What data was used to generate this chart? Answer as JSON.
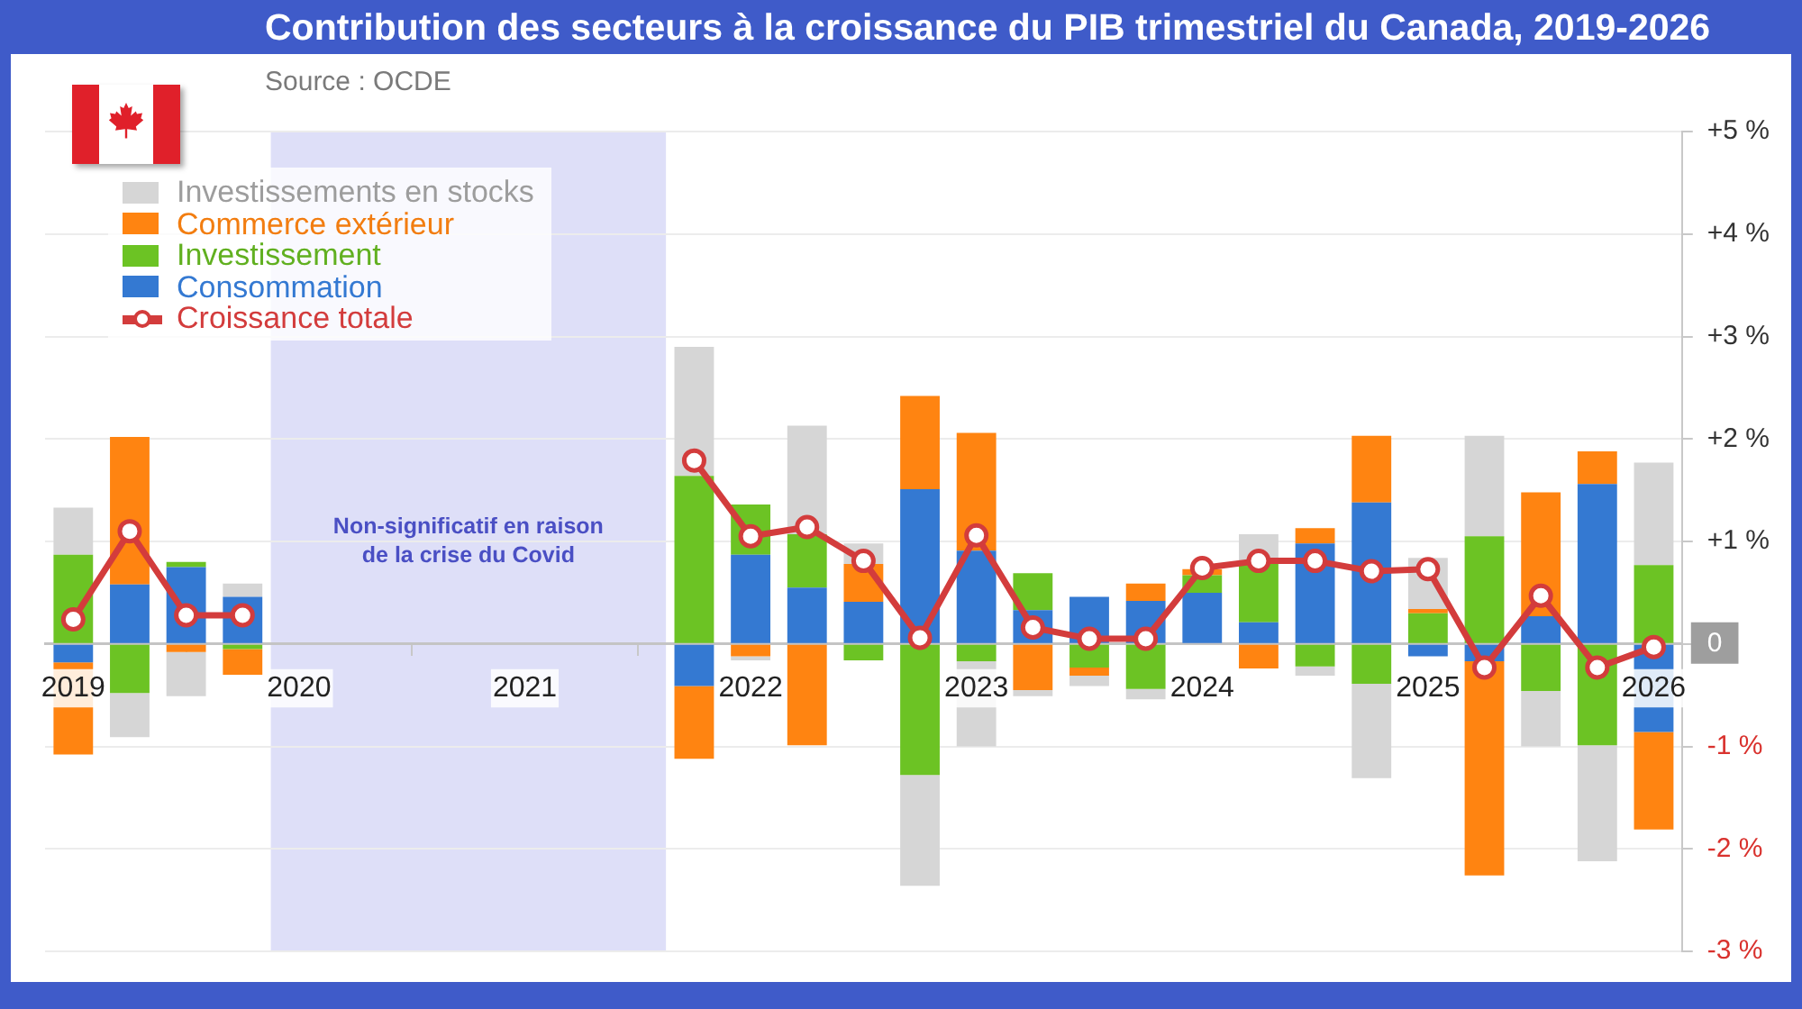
{
  "chart_data": {
    "type": "bar",
    "title": "Contribution des secteurs à la croissance du PIB trimestriel du Canada, 2019-2026",
    "annotations": [
      "Source : OCDE"
    ],
    "x": [
      2019,
      2019.25,
      2019.5,
      2019.75,
      2020,
      2020.25,
      2020.5,
      2020.75,
      2021,
      2021.25,
      2021.5,
      2021.75,
      2022,
      2022.25,
      2022.5,
      2022.75,
      2023,
      2023.25,
      2023.5,
      2023.75,
      2024,
      2024.25,
      2024.5,
      2024.75,
      2025,
      2025.25,
      2025.5,
      2025.75,
      2026
    ],
    "xlim": [
      2018.875,
      2026.125
    ],
    "xticks": [
      2019,
      2020,
      2021,
      2022,
      2023,
      2024,
      2025,
      2026
    ],
    "ylim": [
      -3,
      5
    ],
    "yticks": [
      {
        "value": 5,
        "label": "+5 %"
      },
      {
        "value": 4,
        "label": "+4 %"
      },
      {
        "value": 3,
        "label": "+3 %"
      },
      {
        "value": 2,
        "label": "+2 %"
      },
      {
        "value": 1,
        "label": "+1 %"
      },
      0,
      {
        "value": -1,
        "label": "-1 %"
      },
      {
        "value": -2,
        "label": "-2 %"
      },
      {
        "value": -3,
        "label": "-3 %"
      }
    ],
    "stacked": true,
    "grid": "y",
    "legend": "top left",
    "bands": [
      {
        "axis": "x",
        "from": 2019.875,
        "to": 2021.625,
        "label": "Non-significatif en raison de la crise du Covid",
        "color": "#dedff8"
      }
    ],
    "series": [
      {
        "name": "Consommation",
        "color": "#3479d2",
        "values": [
          -0.18,
          0.58,
          0.75,
          0.46,
          null,
          null,
          null,
          null,
          null,
          null,
          null,
          -0.41,
          0.87,
          0.55,
          0.41,
          1.51,
          0.91,
          0.33,
          0.46,
          0.42,
          0.5,
          0.21,
          0.98,
          1.38,
          -0.12,
          -0.17,
          0.27,
          1.56,
          -0.86
        ]
      },
      {
        "name": "Investissement",
        "color": "#6cc324",
        "values": [
          0.87,
          -0.48,
          0.05,
          -0.05,
          null,
          null,
          null,
          null,
          null,
          null,
          null,
          1.64,
          0.49,
          0.52,
          -0.16,
          -1.28,
          -0.17,
          0.36,
          -0.23,
          -0.44,
          0.17,
          0.57,
          -0.22,
          -0.39,
          0.3,
          1.05,
          -0.46,
          -0.99,
          0.77
        ]
      },
      {
        "name": "Commerce extérieur",
        "color": "#ff8411",
        "values": [
          -0.9,
          1.44,
          -0.08,
          -0.25,
          null,
          null,
          null,
          null,
          null,
          null,
          null,
          -0.71,
          -0.12,
          -0.99,
          0.37,
          0.91,
          1.15,
          -0.45,
          -0.08,
          0.17,
          0.06,
          -0.24,
          0.15,
          0.65,
          0.04,
          -2.09,
          1.21,
          0.32,
          -0.95
        ]
      },
      {
        "name": "Investissements en stocks",
        "color": "#d6d6d6",
        "values": [
          0.46,
          -0.43,
          -0.43,
          0.13,
          null,
          null,
          null,
          null,
          null,
          null,
          null,
          1.26,
          -0.04,
          1.06,
          0.2,
          -1.08,
          -0.83,
          -0.06,
          -0.1,
          -0.1,
          0,
          0.29,
          -0.09,
          -0.92,
          0.5,
          0.98,
          -0.54,
          -1.13,
          1.0
        ]
      },
      {
        "name": "Croissance totale",
        "type": "line",
        "color": "#d33c3c",
        "marker": "circle",
        "values": [
          0.24,
          1.1,
          0.28,
          0.28,
          null,
          null,
          null,
          null,
          null,
          null,
          null,
          1.79,
          1.05,
          1.14,
          0.81,
          0.06,
          1.06,
          0.16,
          0.05,
          0.05,
          0.74,
          0.81,
          0.81,
          0.71,
          0.73,
          -0.23,
          0.47,
          -0.23,
          -0.03
        ]
      }
    ]
  }
}
